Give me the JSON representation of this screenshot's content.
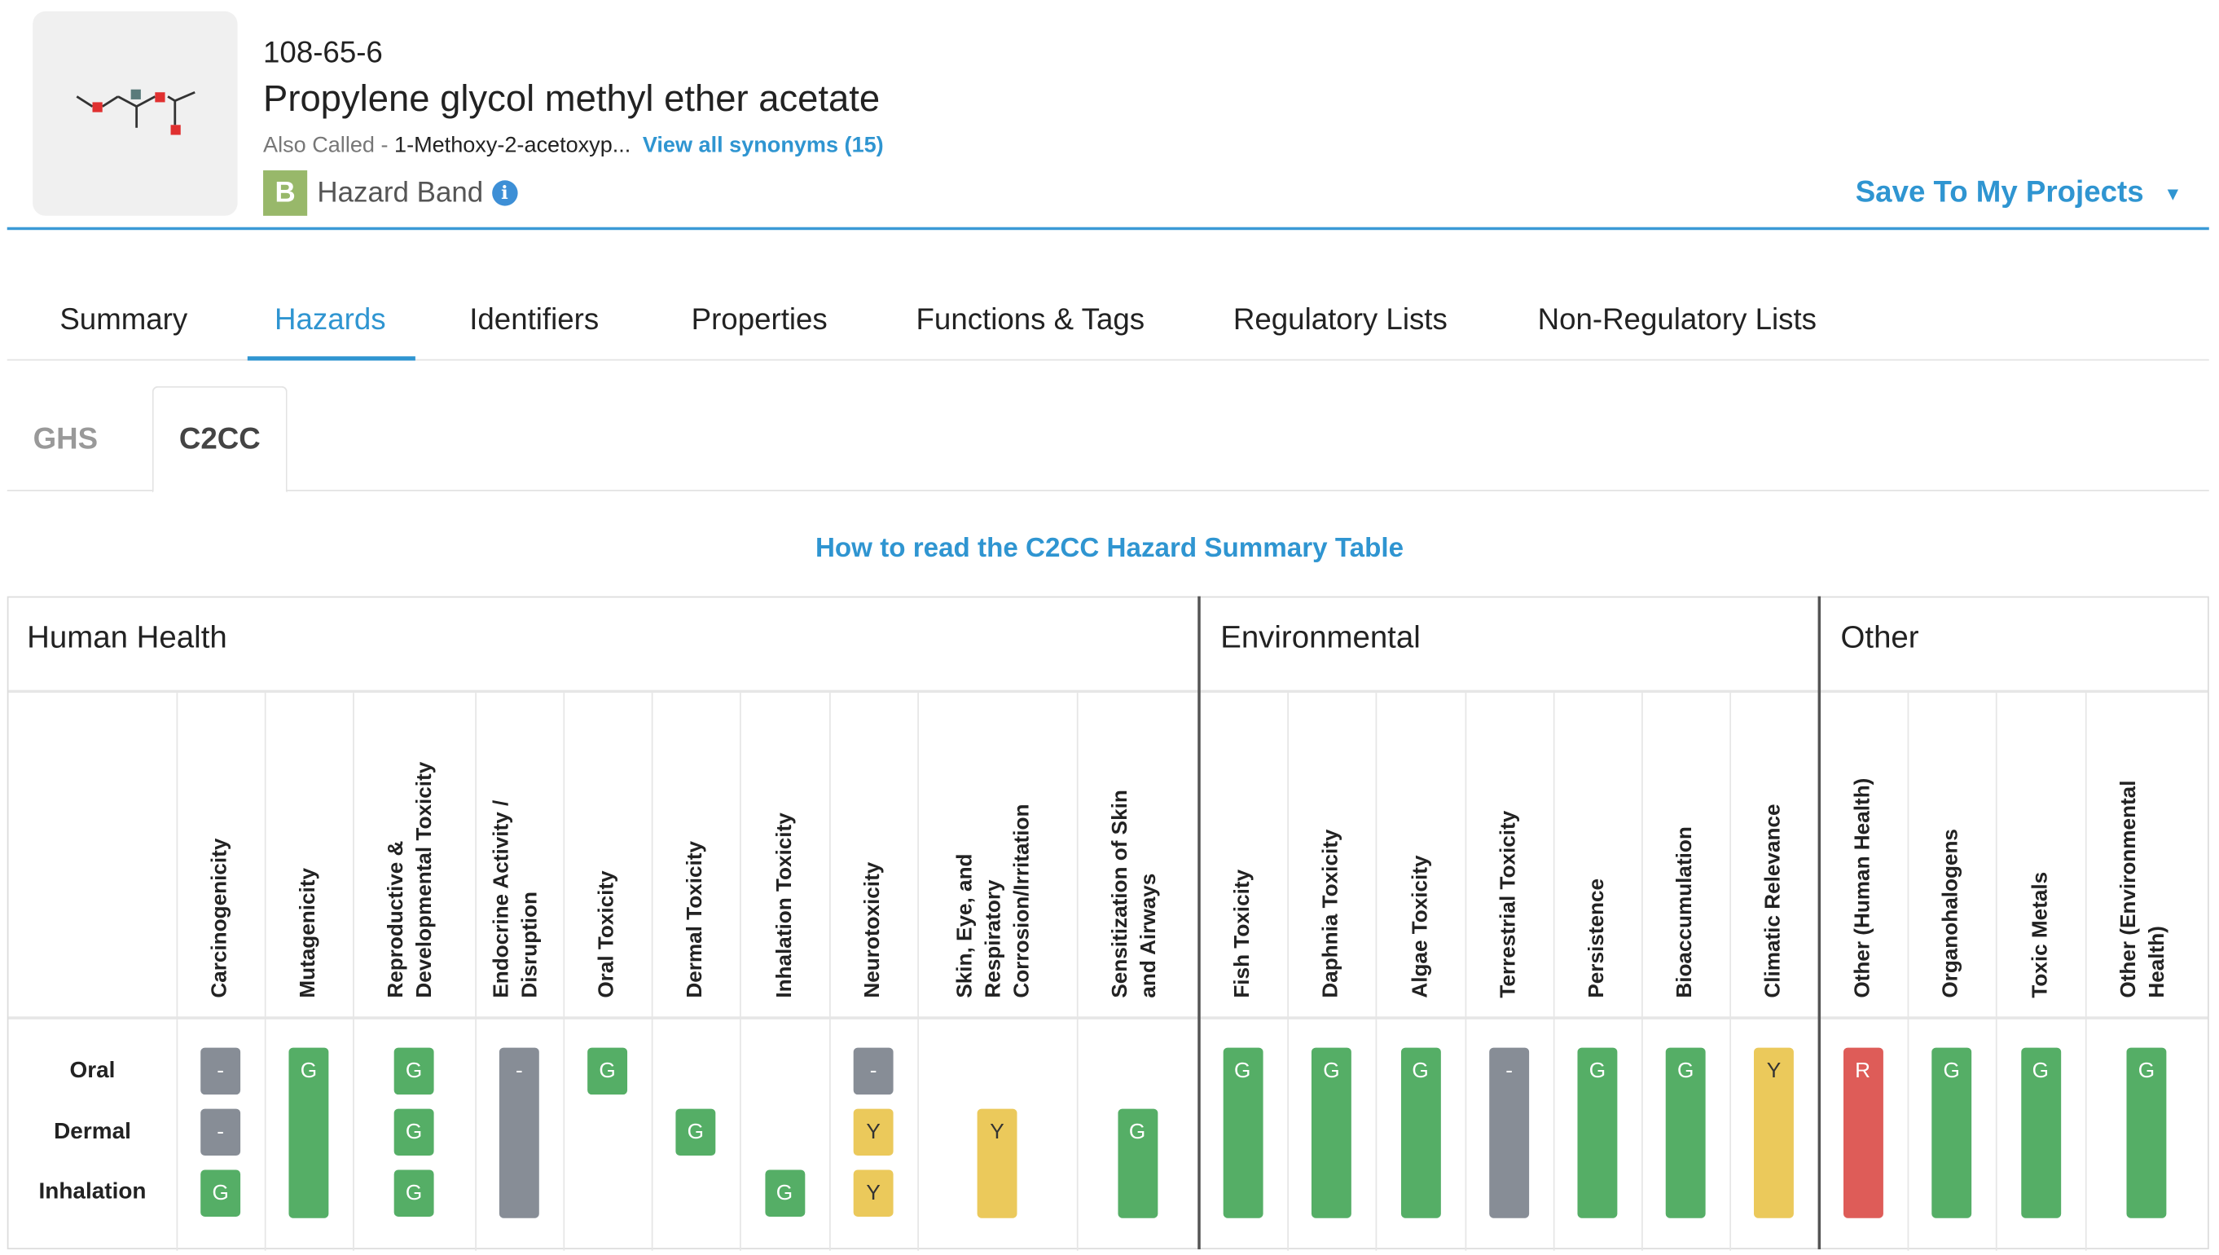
{
  "chemical": {
    "cas_number": "108-65-6",
    "name": "Propylene glycol methyl ether acetate",
    "also_called_label": "Also Called -",
    "also_called_value": "1-Methoxy-2-acetoxyp...",
    "view_synonyms": "View all synonyms (15)",
    "hazard_band_letter": "B",
    "hazard_band_label": "Hazard Band",
    "hazard_band_color": "#98b86a"
  },
  "actions": {
    "save_projects": "Save To My Projects"
  },
  "tabs": [
    {
      "label": "Summary",
      "active": false
    },
    {
      "label": "Hazards",
      "active": true
    },
    {
      "label": "Identifiers",
      "active": false
    },
    {
      "label": "Properties",
      "active": false
    },
    {
      "label": "Functions & Tags",
      "active": false
    },
    {
      "label": "Regulatory Lists",
      "active": false
    },
    {
      "label": "Non-Regulatory Lists",
      "active": false
    }
  ],
  "subtabs": [
    {
      "label": "GHS",
      "active": false
    },
    {
      "label": "C2CC",
      "active": true
    }
  ],
  "howto_link": "How to read the C2CC Hazard Summary Table",
  "hazard_table": {
    "groups": [
      "Human Health",
      "Environmental",
      "Other"
    ],
    "row_labels": [
      "Oral",
      "Dermal",
      "Inhalation"
    ],
    "legend_colors": {
      "G": "#55ae66",
      "Y": "#ebc95b",
      "R": "#de5c58",
      "-": "#878d96"
    },
    "columns": [
      {
        "group": "Human Health",
        "label": [
          "Carcinogenicity"
        ],
        "cells": [
          {
            "route": "Oral",
            "value": "-"
          },
          {
            "route": "Dermal",
            "value": "-"
          },
          {
            "route": "Inhalation",
            "value": "G"
          }
        ]
      },
      {
        "group": "Human Health",
        "label": [
          "Mutagenicity"
        ],
        "cells": [
          {
            "route": "All",
            "value": "G"
          }
        ]
      },
      {
        "group": "Human Health",
        "label": [
          "Reproductive &",
          "Developmental Toxicity"
        ],
        "cells": [
          {
            "route": "Oral",
            "value": "G"
          },
          {
            "route": "Dermal",
            "value": "G"
          },
          {
            "route": "Inhalation",
            "value": "G"
          }
        ]
      },
      {
        "group": "Human Health",
        "label": [
          "Endocrine Activity /",
          "Disruption"
        ],
        "cells": [
          {
            "route": "All",
            "value": "-"
          }
        ]
      },
      {
        "group": "Human Health",
        "label": [
          "Oral Toxicity"
        ],
        "cells": [
          {
            "route": "Oral",
            "value": "G"
          }
        ]
      },
      {
        "group": "Human Health",
        "label": [
          "Dermal Toxicity"
        ],
        "cells": [
          {
            "route": "Dermal",
            "value": "G"
          }
        ]
      },
      {
        "group": "Human Health",
        "label": [
          "Inhalation Toxicity"
        ],
        "cells": [
          {
            "route": "Inhalation",
            "value": "G"
          }
        ]
      },
      {
        "group": "Human Health",
        "label": [
          "Neurotoxicity"
        ],
        "cells": [
          {
            "route": "Oral",
            "value": "-"
          },
          {
            "route": "Dermal",
            "value": "Y"
          },
          {
            "route": "Inhalation",
            "value": "Y"
          }
        ]
      },
      {
        "group": "Human Health",
        "label": [
          "Skin, Eye, and",
          "Respiratory",
          "Corrosion/Irritation"
        ],
        "cells": [
          {
            "route": "Dermal+Inhalation",
            "value": "Y"
          }
        ]
      },
      {
        "group": "Human Health",
        "label": [
          "Sensitization of Skin",
          "and Airways"
        ],
        "cells": [
          {
            "route": "Dermal+Inhalation",
            "value": "G"
          }
        ]
      },
      {
        "group": "Environmental",
        "label": [
          "Fish Toxicity"
        ],
        "cells": [
          {
            "route": "All",
            "value": "G"
          }
        ]
      },
      {
        "group": "Environmental",
        "label": [
          "Daphnia Toxicity"
        ],
        "cells": [
          {
            "route": "All",
            "value": "G"
          }
        ]
      },
      {
        "group": "Environmental",
        "label": [
          "Algae Toxicity"
        ],
        "cells": [
          {
            "route": "All",
            "value": "G"
          }
        ]
      },
      {
        "group": "Environmental",
        "label": [
          "Terrestrial Toxicity"
        ],
        "cells": [
          {
            "route": "All",
            "value": "-"
          }
        ]
      },
      {
        "group": "Environmental",
        "label": [
          "Persistence"
        ],
        "cells": [
          {
            "route": "All",
            "value": "G"
          }
        ]
      },
      {
        "group": "Environmental",
        "label": [
          "Bioaccumulation"
        ],
        "cells": [
          {
            "route": "All",
            "value": "G"
          }
        ]
      },
      {
        "group": "Environmental",
        "label": [
          "Climatic Relevance"
        ],
        "cells": [
          {
            "route": "All",
            "value": "Y"
          }
        ]
      },
      {
        "group": "Other",
        "label": [
          "Other (Human Health)"
        ],
        "cells": [
          {
            "route": "All",
            "value": "R"
          }
        ]
      },
      {
        "group": "Other",
        "label": [
          "Organohalogens"
        ],
        "cells": [
          {
            "route": "All",
            "value": "G"
          }
        ]
      },
      {
        "group": "Other",
        "label": [
          "Toxic Metals"
        ],
        "cells": [
          {
            "route": "All",
            "value": "G"
          }
        ]
      },
      {
        "group": "Other",
        "label": [
          "Other (Environmental",
          "Health)"
        ],
        "cells": [
          {
            "route": "All",
            "value": "G"
          }
        ]
      }
    ]
  }
}
